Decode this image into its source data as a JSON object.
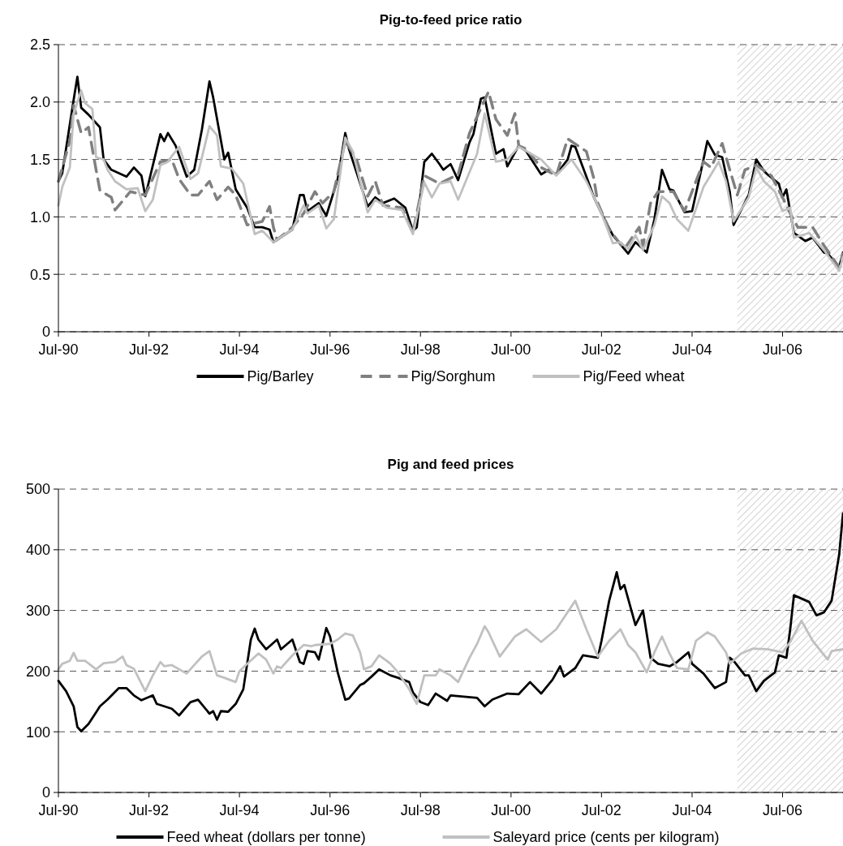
{
  "chart_data": [
    {
      "type": "line",
      "title": "Pig-to-feed price ratio",
      "xlim": [
        "1990-07",
        "2007-11"
      ],
      "ylim": [
        0,
        2.5
      ],
      "xticks": [
        {
          "value": "1990-07",
          "label": "Jul-90"
        },
        {
          "value": "1992-07",
          "label": "Jul-92"
        },
        {
          "value": "1994-07",
          "label": "Jul-94"
        },
        {
          "value": "1996-07",
          "label": "Jul-96"
        },
        {
          "value": "1998-07",
          "label": "Jul-98"
        },
        {
          "value": "2000-07",
          "label": "Jul-00"
        },
        {
          "value": "2002-07",
          "label": "Jul-02"
        },
        {
          "value": "2004-07",
          "label": "Jul-04"
        },
        {
          "value": "2006-07",
          "label": "Jul-06"
        }
      ],
      "yticks": [
        0,
        0.5,
        {
          "value": 1,
          "label": "1.0"
        },
        1.5,
        {
          "value": 2,
          "label": "2.0"
        },
        2.5
      ],
      "grid": "y",
      "legend": "bottom",
      "line_style": "solid",
      "bands": [
        {
          "axis": "x",
          "from": "2005-07",
          "to": "2007-11",
          "color": "#c8c8c8"
        }
      ],
      "series": [
        {
          "name": "Pig/Barley",
          "color": "#000000",
          "x": [
            "1990-07",
            "1990-08",
            "1990-11",
            "1990-12",
            "1991-01",
            "1991-03",
            "1991-06",
            "1991-07",
            "1991-09",
            "1991-11",
            "1992-01",
            "1992-03",
            "1992-05",
            "1992-06",
            "1992-07",
            "1992-10",
            "1992-11",
            "1992-12",
            "1993-02",
            "1993-05",
            "1993-07",
            "1993-09",
            "1993-11",
            "1993-12",
            "1994-03",
            "1994-04",
            "1994-06",
            "1994-09",
            "1994-11",
            "1995-01",
            "1995-03",
            "1995-04",
            "1995-09",
            "1995-11",
            "1995-12",
            "1996-01",
            "1996-04",
            "1996-06",
            "1996-09",
            "1996-11",
            "1996-12",
            "1997-05",
            "1997-07",
            "1997-09",
            "1997-12",
            "1998-03",
            "1998-05",
            "1998-06",
            "1998-08",
            "1998-10",
            "1998-12",
            "1999-01",
            "1999-03",
            "1999-05",
            "1999-08",
            "1999-09",
            "1999-11",
            "1999-12",
            "2000-03",
            "2000-05",
            "2000-06",
            "2000-09",
            "2000-11",
            "2001-03",
            "2001-05",
            "2001-07",
            "2001-10",
            "2001-11",
            "2001-12",
            "2002-03",
            "2002-05",
            "2002-07",
            "2002-10",
            "2003-02",
            "2003-04",
            "2003-07",
            "2003-09",
            "2003-11",
            "2004-01",
            "2004-02",
            "2004-05",
            "2004-07",
            "2004-10",
            "2004-11",
            "2005-01",
            "2005-03",
            "2005-05",
            "2005-06",
            "2005-10",
            "2005-12",
            "2006-02",
            "2006-03",
            "2006-06",
            "2006-07",
            "2006-08",
            "2006-10",
            "2007-01",
            "2007-03",
            "2007-06",
            "2007-07",
            "2007-10",
            "2007-11"
          ],
          "values": [
            1.31,
            1.38,
            2.02,
            2.22,
            1.95,
            1.89,
            1.78,
            1.5,
            1.41,
            1.38,
            1.35,
            1.43,
            1.36,
            1.18,
            1.31,
            1.72,
            1.66,
            1.73,
            1.62,
            1.35,
            1.41,
            1.76,
            2.18,
            2.04,
            1.5,
            1.56,
            1.24,
            1.08,
            0.91,
            0.91,
            0.89,
            0.78,
            0.89,
            1.19,
            1.19,
            1.05,
            1.12,
            1.01,
            1.33,
            1.73,
            1.59,
            1.09,
            1.17,
            1.12,
            1.16,
            1.08,
            0.88,
            0.91,
            1.48,
            1.55,
            1.46,
            1.41,
            1.46,
            1.32,
            1.65,
            1.72,
            2.03,
            2.04,
            1.55,
            1.59,
            1.44,
            1.62,
            1.57,
            1.37,
            1.41,
            1.37,
            1.5,
            1.62,
            1.61,
            1.35,
            1.17,
            1.03,
            0.84,
            0.68,
            0.78,
            0.69,
            0.98,
            1.41,
            1.24,
            1.23,
            1.04,
            1.05,
            1.5,
            1.66,
            1.54,
            1.52,
            1.22,
            0.93,
            1.19,
            1.5,
            1.4,
            1.37,
            1.29,
            1.17,
            1.24,
            0.86,
            0.79,
            0.82,
            0.69,
            0.68,
            0.56,
            0.69
          ]
        },
        {
          "name": "Pig/Sorghum",
          "color": "#808080",
          "line_style": "dashed",
          "x": [
            "1990-07",
            "1990-10",
            "1990-11",
            "1991-01",
            "1991-03",
            "1991-05",
            "1991-06",
            "1991-09",
            "1991-10",
            "1992-02",
            "1992-06",
            "1992-10",
            "1993-01",
            "1993-03",
            "1993-06",
            "1993-08",
            "1993-11",
            "1994-01",
            "1994-04",
            "1994-06",
            "1994-09",
            "1995-01",
            "1995-03",
            "1995-04",
            "1995-05",
            "1995-09",
            "1995-12",
            "1996-03",
            "1996-05",
            "1996-08",
            "1996-11",
            "1997-02",
            "1997-05",
            "1997-07",
            "1997-09",
            "1998-02",
            "1998-05",
            "1998-08",
            "1998-12",
            "1999-05",
            "1999-08",
            "2000-01",
            "2000-03",
            "2000-06",
            "2000-08",
            "2000-09",
            "2000-11",
            "2001-03",
            "2001-07",
            "2001-10",
            "2002-03",
            "2002-05",
            "2002-06",
            "2002-09",
            "2003-01",
            "2003-05",
            "2003-06",
            "2003-08",
            "2003-10",
            "2004-02",
            "2004-05",
            "2004-10",
            "2004-12",
            "2005-03",
            "2005-05",
            "2005-07",
            "2005-09",
            "2005-12",
            "2006-04",
            "2006-07",
            "2006-09",
            "2006-11",
            "2007-03",
            "2007-06",
            "2007-10",
            "2007-11"
          ],
          "values": [
            1.31,
            1.66,
            1.97,
            1.73,
            1.78,
            1.41,
            1.23,
            1.17,
            1.06,
            1.22,
            1.19,
            1.48,
            1.5,
            1.33,
            1.19,
            1.19,
            1.31,
            1.15,
            1.26,
            1.19,
            0.93,
            0.96,
            1.09,
            0.91,
            0.8,
            0.91,
            1.03,
            1.22,
            1.12,
            1.22,
            1.66,
            1.5,
            1.18,
            1.31,
            1.1,
            1.08,
            0.86,
            1.36,
            1.29,
            1.37,
            1.73,
            2.09,
            1.85,
            1.71,
            1.9,
            1.62,
            1.59,
            1.43,
            1.36,
            1.68,
            1.57,
            1.33,
            1.12,
            0.89,
            0.72,
            0.91,
            0.75,
            1.12,
            1.22,
            1.22,
            1.05,
            1.48,
            1.43,
            1.64,
            1.41,
            1.19,
            1.41,
            1.45,
            1.36,
            1.17,
            1.03,
            0.91,
            0.91,
            0.75,
            0.56,
            0.68
          ]
        },
        {
          "name": "Pig/Feed wheat",
          "color": "#c0c0c0",
          "x": [
            "1990-07",
            "1990-08",
            "1990-10",
            "1990-11",
            "1991-01",
            "1991-02",
            "1991-04",
            "1991-05",
            "1991-07",
            "1991-08",
            "1991-10",
            "1992-01",
            "1992-04",
            "1992-06",
            "1992-08",
            "1992-10",
            "1992-12",
            "1993-01",
            "1993-03",
            "1993-06",
            "1993-08",
            "1993-11",
            "1994-01",
            "1994-02",
            "1994-05",
            "1994-08",
            "1994-11",
            "1995-01",
            "1995-04",
            "1995-09",
            "1995-12",
            "1996-01",
            "1996-04",
            "1996-06",
            "1996-08",
            "1996-11",
            "1997-01",
            "1997-05",
            "1997-07",
            "1997-10",
            "1998-02",
            "1998-05",
            "1998-08",
            "1998-10",
            "1998-12",
            "1999-03",
            "1999-05",
            "1999-10",
            "1999-12",
            "2000-03",
            "2000-06",
            "2000-09",
            "2001-03",
            "2001-07",
            "2001-11",
            "2002-03",
            "2002-07",
            "2002-10",
            "2002-12",
            "2003-02",
            "2003-04",
            "2003-06",
            "2003-09",
            "2003-11",
            "2004-01",
            "2004-03",
            "2004-06",
            "2004-10",
            "2005-02",
            "2005-04",
            "2005-06",
            "2005-10",
            "2005-12",
            "2006-02",
            "2006-05",
            "2006-07",
            "2006-09",
            "2006-10",
            "2007-02",
            "2007-06",
            "2007-10",
            "2007-11"
          ],
          "values": [
            1.1,
            1.26,
            1.43,
            1.9,
            2.1,
            1.99,
            1.94,
            1.52,
            1.5,
            1.41,
            1.31,
            1.24,
            1.25,
            1.05,
            1.15,
            1.45,
            1.48,
            1.53,
            1.61,
            1.33,
            1.38,
            1.79,
            1.71,
            1.44,
            1.42,
            1.29,
            0.85,
            0.88,
            0.78,
            0.89,
            1.1,
            1.03,
            1.1,
            0.9,
            0.98,
            1.69,
            1.57,
            1.04,
            1.15,
            1.08,
            1.06,
            0.85,
            1.3,
            1.17,
            1.29,
            1.31,
            1.15,
            1.55,
            1.9,
            1.48,
            1.5,
            1.61,
            1.5,
            1.36,
            1.5,
            1.31,
            1.03,
            0.77,
            0.78,
            0.72,
            0.84,
            0.71,
            0.93,
            1.18,
            1.12,
            0.98,
            0.88,
            1.26,
            1.48,
            1.31,
            0.96,
            1.17,
            1.43,
            1.31,
            1.22,
            1.05,
            1.08,
            0.82,
            0.86,
            0.71,
            0.53,
            0.65
          ]
        }
      ]
    },
    {
      "type": "line",
      "title": "Pig and feed prices",
      "xlim": [
        "1990-07",
        "2007-11"
      ],
      "ylim": [
        0,
        500
      ],
      "xticks": [
        {
          "value": "1990-07",
          "label": "Jul-90"
        },
        {
          "value": "1992-07",
          "label": "Jul-92"
        },
        {
          "value": "1994-07",
          "label": "Jul-94"
        },
        {
          "value": "1996-07",
          "label": "Jul-96"
        },
        {
          "value": "1998-07",
          "label": "Jul-98"
        },
        {
          "value": "2000-07",
          "label": "Jul-00"
        },
        {
          "value": "2002-07",
          "label": "Jul-02"
        },
        {
          "value": "2004-07",
          "label": "Jul-04"
        },
        {
          "value": "2006-07",
          "label": "Jul-06"
        }
      ],
      "yticks": [
        0,
        100,
        200,
        300,
        400,
        500
      ],
      "grid": "y",
      "legend": "bottom",
      "line_style": "solid",
      "bands": [
        {
          "axis": "x",
          "from": "2005-07",
          "to": "2007-11",
          "color": "#c8c8c8"
        }
      ],
      "series": [
        {
          "name": "Feed wheat (dollars per tonne)",
          "color": "#000000",
          "x": [
            "1990-07",
            "1990-09",
            "1990-11",
            "1990-12",
            "1991-01",
            "1991-03",
            "1991-05",
            "1991-06",
            "1991-08",
            "1991-11",
            "1992-01",
            "1992-03",
            "1992-05",
            "1992-08",
            "1992-09",
            "1993-01",
            "1993-03",
            "1993-06",
            "1993-08",
            "1993-11",
            "1993-12",
            "1994-01",
            "1994-02",
            "1994-04",
            "1994-06",
            "1994-08",
            "1994-10",
            "1994-11",
            "1994-12",
            "1995-02",
            "1995-05",
            "1995-06",
            "1995-09",
            "1995-11",
            "1995-12",
            "1996-01",
            "1996-03",
            "1996-04",
            "1996-06",
            "1996-07",
            "1996-09",
            "1996-11",
            "1996-12",
            "1997-03",
            "1997-04",
            "1997-06",
            "1997-08",
            "1997-11",
            "1998-01",
            "1998-04",
            "1998-05",
            "1998-07",
            "1998-09",
            "1998-11",
            "1999-02",
            "1999-03",
            "1999-10",
            "1999-12",
            "2000-02",
            "2000-06",
            "2000-09",
            "2000-12",
            "2001-03",
            "2001-06",
            "2001-08",
            "2001-09",
            "2001-12",
            "2002-02",
            "2002-06",
            "2002-07",
            "2002-09",
            "2002-11",
            "2002-12",
            "2003-01",
            "2003-04",
            "2003-06",
            "2003-08",
            "2003-10",
            "2004-01",
            "2004-03",
            "2004-06",
            "2004-07",
            "2004-10",
            "2005-01",
            "2005-04",
            "2005-05",
            "2005-06",
            "2005-09",
            "2005-10",
            "2005-12",
            "2006-02",
            "2006-05",
            "2006-06",
            "2006-08",
            "2006-09",
            "2006-10",
            "2007-02",
            "2007-04",
            "2007-06",
            "2007-08",
            "2007-10",
            "2007-11"
          ],
          "values": [
            184,
            167,
            142,
            108,
            101,
            113,
            132,
            142,
            153,
            172,
            172,
            160,
            152,
            160,
            146,
            138,
            127,
            149,
            153,
            130,
            134,
            120,
            134,
            133,
            146,
            170,
            252,
            270,
            252,
            236,
            252,
            236,
            252,
            215,
            212,
            233,
            231,
            219,
            271,
            257,
            198,
            153,
            155,
            177,
            180,
            191,
            203,
            193,
            189,
            182,
            165,
            149,
            144,
            163,
            151,
            160,
            156,
            142,
            153,
            163,
            162,
            182,
            163,
            186,
            208,
            191,
            205,
            226,
            222,
            250,
            316,
            363,
            335,
            342,
            276,
            300,
            222,
            212,
            208,
            215,
            231,
            212,
            196,
            172,
            182,
            222,
            217,
            193,
            193,
            167,
            184,
            198,
            226,
            222,
            269,
            325,
            314,
            292,
            297,
            316,
            392,
            460
          ]
        },
        {
          "name": "Saleyard price (cents per kilogram)",
          "color": "#c0c0c0",
          "x": [
            "1990-07",
            "1990-08",
            "1990-10",
            "1990-11",
            "1990-12",
            "1991-02",
            "1991-05",
            "1991-07",
            "1991-10",
            "1991-12",
            "1992-01",
            "1992-03",
            "1992-06",
            "1992-08",
            "1992-10",
            "1992-11",
            "1993-01",
            "1993-03",
            "1993-05",
            "1993-07",
            "1993-09",
            "1993-11",
            "1994-01",
            "1994-03",
            "1994-06",
            "1994-07",
            "1994-09",
            "1994-12",
            "1995-01",
            "1995-02",
            "1995-04",
            "1995-05",
            "1995-06",
            "1995-09",
            "1995-12",
            "1996-02",
            "1996-03",
            "1996-07",
            "1996-09",
            "1996-11",
            "1997-01",
            "1997-03",
            "1997-04",
            "1997-06",
            "1997-08",
            "1997-10",
            "1997-11",
            "1998-01",
            "1998-04",
            "1998-06",
            "1998-08",
            "1998-11",
            "1998-12",
            "1999-03",
            "1999-05",
            "1999-08",
            "1999-10",
            "1999-12",
            "2000-01",
            "2000-04",
            "2000-08",
            "2000-11",
            "2001-03",
            "2001-07",
            "2001-09",
            "2001-12",
            "2002-03",
            "2002-06",
            "2002-09",
            "2002-12",
            "2003-02",
            "2003-04",
            "2003-07",
            "2003-09",
            "2003-11",
            "2004-01",
            "2004-03",
            "2004-06",
            "2004-08",
            "2004-11",
            "2005-01",
            "2005-04",
            "2005-05",
            "2005-08",
            "2005-11",
            "2006-03",
            "2006-07",
            "2006-09",
            "2006-12",
            "2007-03",
            "2007-07",
            "2007-08",
            "2007-11"
          ],
          "values": [
            203,
            212,
            217,
            230,
            217,
            217,
            203,
            213,
            215,
            224,
            210,
            204,
            167,
            193,
            215,
            208,
            210,
            203,
            196,
            210,
            224,
            233,
            193,
            189,
            182,
            200,
            212,
            229,
            224,
            219,
            196,
            208,
            205,
            226,
            243,
            241,
            243,
            245,
            252,
            262,
            259,
            231,
            203,
            208,
            226,
            217,
            212,
            198,
            170,
            146,
            193,
            193,
            203,
            193,
            182,
            222,
            245,
            274,
            264,
            224,
            257,
            269,
            248,
            269,
            288,
            316,
            269,
            224,
            250,
            269,
            243,
            231,
            198,
            231,
            257,
            229,
            205,
            203,
            250,
            264,
            257,
            231,
            212,
            229,
            237,
            236,
            231,
            248,
            283,
            250,
            219,
            233,
            236
          ]
        }
      ]
    }
  ]
}
